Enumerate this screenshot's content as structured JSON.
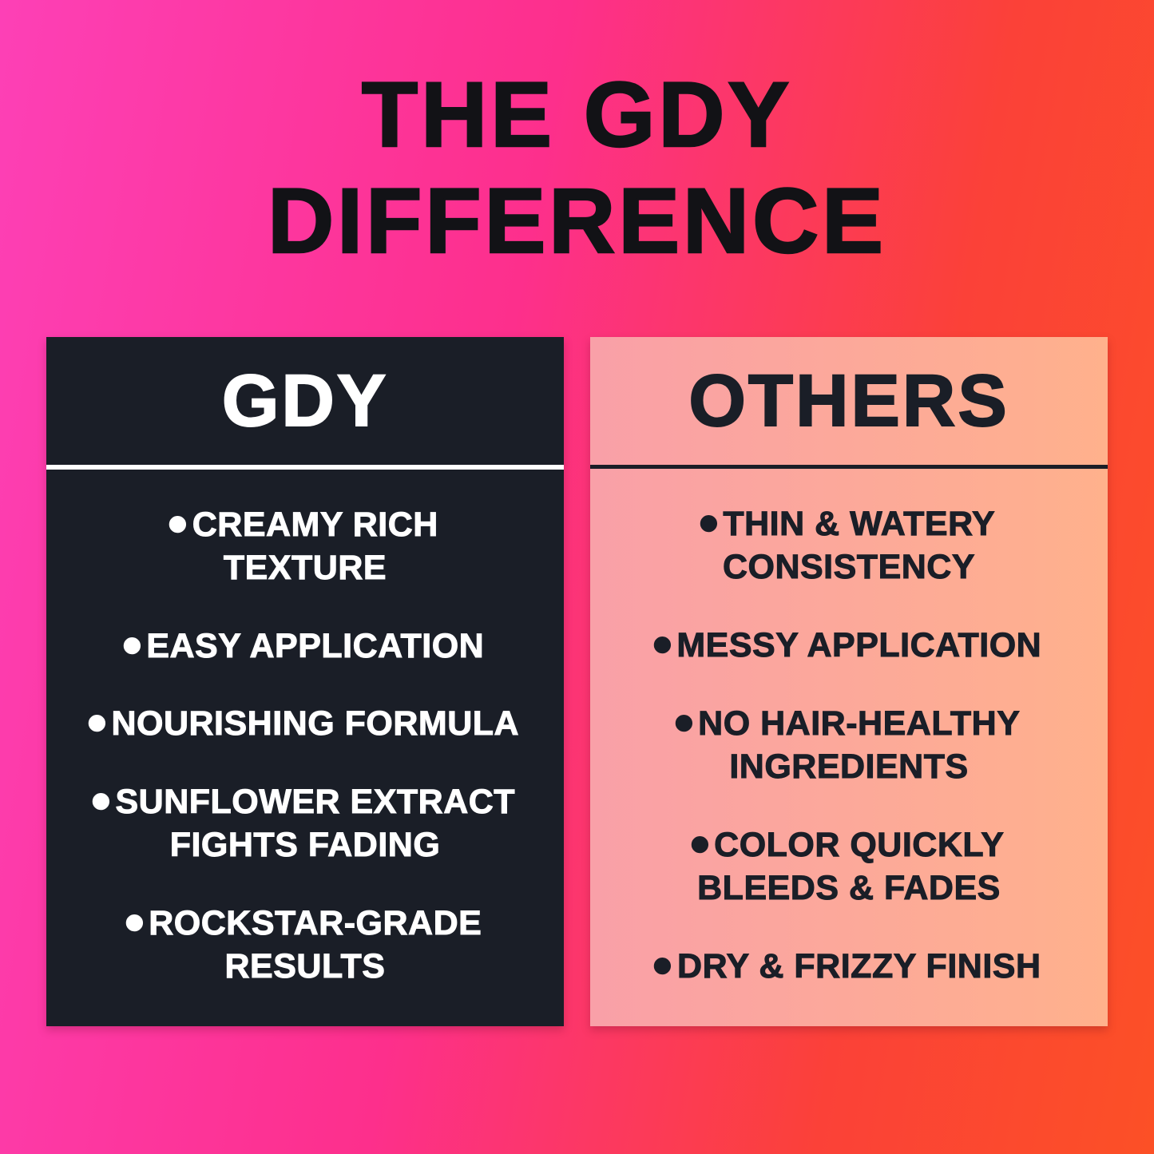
{
  "title": {
    "lines": [
      "THE GDY",
      "DIFFERENCE"
    ]
  },
  "bullet_glyph": "•",
  "colors": {
    "background_gradient_left": "#fd40b6",
    "background_gradient_mid": "#fd2f8c",
    "background_gradient_right_top": "#fb4138",
    "background_gradient_right_bottom": "#fc5026",
    "card_dark_background": "#1a1e27",
    "card_light_gradient_left": "#f9a0a8",
    "card_light_gradient_right": "#ffb18c",
    "dark_text": "#121216",
    "light_text": "#ffffff"
  },
  "cards": {
    "left": {
      "heading": "GDY",
      "items": [
        [
          "CREAMY RICH",
          "TEXTURE"
        ],
        [
          "EASY APPLICATION"
        ],
        [
          "NOURISHING FORMULA"
        ],
        [
          "SUNFLOWER EXTRACT",
          "FIGHTS FADING"
        ],
        [
          "ROCKSTAR-GRADE",
          "RESULTS"
        ]
      ]
    },
    "right": {
      "heading": "OTHERS",
      "items": [
        [
          "THIN & WATERY",
          "CONSISTENCY"
        ],
        [
          "MESSY APPLICATION"
        ],
        [
          "NO HAIR-HEALTHY",
          "INGREDIENTS"
        ],
        [
          "COLOR QUICKLY",
          "BLEEDS & FADES"
        ],
        [
          "DRY & FRIZZY FINISH"
        ]
      ]
    }
  }
}
